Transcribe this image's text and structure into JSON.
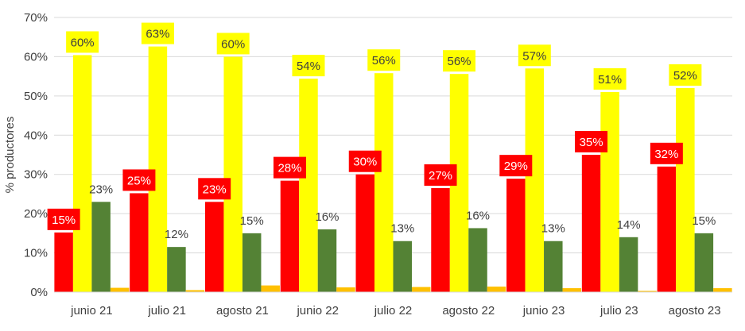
{
  "chart_data": {
    "type": "bar",
    "title": "",
    "xlabel": "",
    "ylabel": "% productores",
    "ylim": [
      0,
      70
    ],
    "ytick_step": 10,
    "ytick_labels": [
      "0%",
      "10%",
      "20%",
      "30%",
      "40%",
      "50%",
      "60%",
      "70%"
    ],
    "grid": true,
    "legend": "none",
    "categories": [
      "junio 21",
      "julio 21",
      "agosto 21",
      "junio 22",
      "julio 22",
      "agosto 22",
      "junio 23",
      "julio 23",
      "agosto 23"
    ],
    "series": [
      {
        "values": [
          15.2,
          25.2,
          23,
          28.4,
          30,
          26.5,
          28.9,
          35,
          32
        ],
        "labels": [
          "15%",
          "25%",
          "23%",
          "28%",
          "30%",
          "27%",
          "29%",
          "35%",
          "32%"
        ],
        "color": "#ff0000",
        "label_style": "boxed",
        "label_box_color": "#ff0000",
        "label_text_color": "#ffffff"
      },
      {
        "values": [
          60.4,
          62.6,
          60,
          54.4,
          55.8,
          55.6,
          57,
          51,
          52
        ],
        "labels": [
          "60%",
          "63%",
          "60%",
          "54%",
          "56%",
          "56%",
          "57%",
          "51%",
          "52%"
        ],
        "color": "#ffff00",
        "label_style": "boxed",
        "label_box_color": "#ffff00",
        "label_text_color": "#404040"
      },
      {
        "values": [
          23,
          11.5,
          15,
          16,
          13,
          16.3,
          13,
          14,
          15
        ],
        "labels": [
          "23%",
          "12%",
          "15%",
          "16%",
          "13%",
          "16%",
          "13%",
          "14%",
          "15%"
        ],
        "color": "#548235",
        "label_style": "plain",
        "label_text_color": "#404040"
      },
      {
        "values": [
          1.1,
          0.5,
          1.7,
          1.2,
          1.3,
          1.4,
          1.0,
          0.3,
          1.0
        ],
        "labels": [],
        "color": "#ffc000",
        "label_style": "none"
      }
    ]
  }
}
